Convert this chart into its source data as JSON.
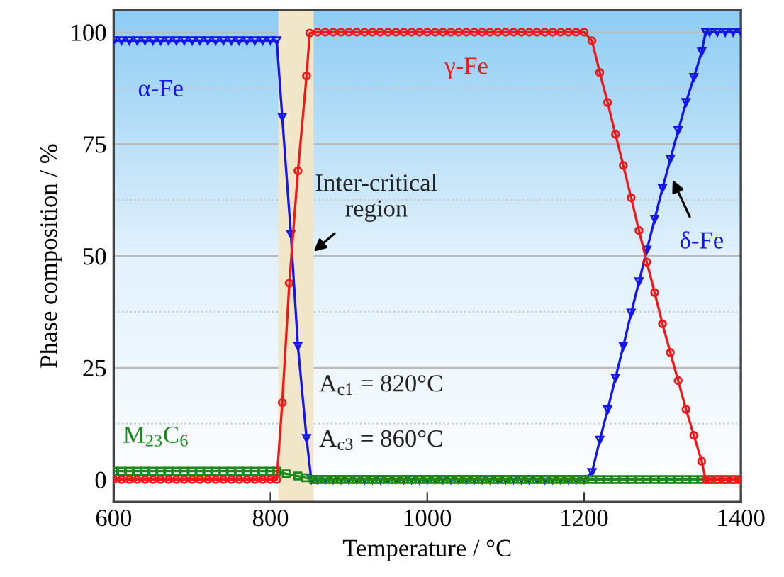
{
  "chart_data": {
    "type": "line",
    "xlabel": "Temperature / °C",
    "ylabel": "Phase composition / %",
    "xlim": [
      600,
      1400
    ],
    "xticks": [
      600,
      800,
      1000,
      1200,
      1400
    ],
    "ylim": [
      -5,
      105
    ],
    "yticks": [
      0,
      25,
      50,
      75,
      100
    ],
    "grid": "y",
    "legend": false,
    "line_style": "solid",
    "series": [
      {
        "name": "α-Fe",
        "color": "#1515f0",
        "marker": "triangle",
        "x": [
          600,
          610,
          620,
          630,
          640,
          650,
          660,
          670,
          680,
          690,
          700,
          710,
          720,
          730,
          740,
          750,
          760,
          770,
          780,
          790,
          800,
          808,
          815,
          826,
          835,
          846,
          852
        ],
        "values": [
          98.1,
          98.1,
          98.1,
          98.1,
          98.1,
          98.1,
          98.1,
          98.1,
          98.1,
          98.1,
          98.1,
          98.1,
          98.1,
          98.1,
          98.1,
          98.1,
          98.1,
          98.1,
          98.1,
          98.1,
          98.1,
          98.1,
          81,
          54.8,
          29.8,
          9.2,
          0
        ]
      },
      {
        "name": "γ-Fe",
        "color": "#f01818",
        "marker": "circle",
        "x": [
          600,
          610,
          620,
          630,
          640,
          650,
          660,
          670,
          680,
          690,
          700,
          710,
          720,
          730,
          740,
          750,
          760,
          770,
          780,
          790,
          800,
          808,
          815,
          824,
          835,
          846,
          850,
          860,
          870,
          880,
          890,
          900,
          910,
          920,
          930,
          940,
          950,
          960,
          970,
          980,
          990,
          1000,
          1010,
          1020,
          1030,
          1040,
          1050,
          1060,
          1070,
          1080,
          1090,
          1100,
          1110,
          1120,
          1130,
          1140,
          1150,
          1160,
          1170,
          1180,
          1190,
          1200,
          1210,
          1220,
          1230,
          1240,
          1250,
          1260,
          1270,
          1280,
          1290,
          1300,
          1310,
          1320,
          1330,
          1340,
          1350,
          1355,
          1360,
          1370,
          1380,
          1390,
          1400
        ],
        "values": [
          0,
          0,
          0,
          0,
          0,
          0,
          0,
          0,
          0,
          0,
          0,
          0,
          0,
          0,
          0,
          0,
          0,
          0,
          0,
          0,
          0,
          0,
          17.2,
          43.9,
          69,
          90.2,
          99.8,
          100,
          100,
          100,
          100,
          100,
          100,
          100,
          100,
          100,
          100,
          100,
          100,
          100,
          100,
          100,
          100,
          100,
          100,
          100,
          100,
          100,
          100,
          100,
          100,
          100,
          100,
          100,
          100,
          100,
          100,
          100,
          100,
          100,
          100,
          100,
          98.1,
          91,
          84.3,
          77.2,
          70.2,
          63,
          55.7,
          48.6,
          41.8,
          34.8,
          28.4,
          22.1,
          15.7,
          9.9,
          4.1,
          0,
          0,
          0,
          0,
          0,
          0
        ]
      },
      {
        "color": "#1515f0",
        "marker": "triangle",
        "x": [
          860,
          870,
          880,
          890,
          900,
          910,
          920,
          930,
          940,
          950,
          960,
          970,
          980,
          990,
          1000,
          1010,
          1020,
          1030,
          1040,
          1050,
          1060,
          1070,
          1080,
          1090,
          1100,
          1110,
          1120,
          1130,
          1140,
          1150,
          1160,
          1170,
          1180,
          1190,
          1200,
          1210,
          1220,
          1230,
          1240,
          1250,
          1260,
          1270,
          1280,
          1290,
          1300,
          1310,
          1320,
          1330,
          1340,
          1350,
          1355,
          1360,
          1370,
          1380,
          1390,
          1400
        ],
        "values": [
          0,
          0,
          0,
          0,
          0,
          0,
          0,
          0,
          0,
          0,
          0,
          0,
          0,
          0,
          0,
          0,
          0,
          0,
          0,
          0,
          0,
          0,
          0,
          0,
          0,
          0,
          0,
          0,
          0,
          0,
          0,
          0,
          0,
          0,
          0,
          1.6,
          8.8,
          15.6,
          22.7,
          29.8,
          37.2,
          44.2,
          51.3,
          58.2,
          65.1,
          71.6,
          78,
          84.3,
          89.9,
          95.6,
          100,
          100,
          100,
          100,
          100,
          100
        ]
      },
      {
        "name": "M$_{23}$C$_{6}$",
        "color": "#1a8a1a",
        "marker": "square",
        "x": [
          600,
          610,
          620,
          630,
          640,
          650,
          660,
          670,
          680,
          690,
          700,
          710,
          720,
          730,
          740,
          750,
          760,
          770,
          780,
          790,
          800,
          808,
          820,
          835,
          845,
          855,
          860,
          870,
          880,
          890,
          900,
          910,
          920,
          930,
          940,
          950,
          960,
          970,
          980,
          990,
          1000,
          1010,
          1020,
          1030,
          1040,
          1050,
          1060,
          1070,
          1080,
          1090,
          1100,
          1110,
          1120,
          1130,
          1140,
          1150,
          1160,
          1170,
          1180,
          1190,
          1200,
          1210,
          1220,
          1230,
          1240,
          1250,
          1260,
          1270,
          1280,
          1290,
          1300,
          1310,
          1320,
          1330,
          1340,
          1350,
          1360,
          1370,
          1380,
          1390,
          1400
        ],
        "values": [
          1.9,
          1.9,
          1.9,
          1.9,
          1.9,
          1.9,
          1.9,
          1.9,
          1.9,
          1.9,
          1.9,
          1.9,
          1.9,
          1.9,
          1.9,
          1.9,
          1.9,
          1.9,
          1.9,
          1.9,
          1.9,
          1.9,
          1.3,
          0.8,
          0.4,
          0,
          0,
          0,
          0,
          0,
          0,
          0,
          0,
          0,
          0,
          0,
          0,
          0,
          0,
          0,
          0,
          0,
          0,
          0,
          0,
          0,
          0,
          0,
          0,
          0,
          0,
          0,
          0,
          0,
          0,
          0,
          0,
          0,
          0,
          0,
          0,
          0,
          0,
          0,
          0,
          0,
          0,
          0,
          0,
          0,
          0,
          0,
          0,
          0,
          0,
          0,
          0,
          0,
          0,
          0,
          0
        ]
      }
    ],
    "bands": [
      {
        "axis": "x",
        "from": 810,
        "to": 855,
        "color": "#f1e6c8"
      }
    ],
    "ref_lines": [
      {
        "axis": "y",
        "value": 12.5,
        "color": "#c8c8c8",
        "line_style": "dotted"
      },
      {
        "axis": "y",
        "value": 37.5,
        "color": "#c8c8c8",
        "line_style": "dotted"
      },
      {
        "axis": "y",
        "value": 62.5,
        "color": "#c8c8c8",
        "line_style": "dotted"
      },
      {
        "axis": "y",
        "value": 87.5,
        "color": "#c8c8c8",
        "line_style": "dotted"
      }
    ],
    "annotations": [
      {
        "text": "Inter-critical\nregion",
        "x": 855,
        "y": 51
      },
      {
        "text": "δ-Fe",
        "x": 1313,
        "y": 67
      },
      "A$_{c1}$ = 820°C",
      "A$_{c3}$ = 860°C"
    ]
  }
}
